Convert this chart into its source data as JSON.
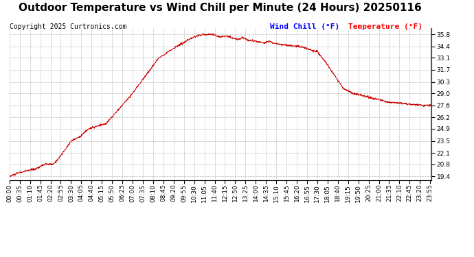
{
  "title": "Outdoor Temperature vs Wind Chill per Minute (24 Hours) 20250116",
  "copyright": "Copyright 2025 Curtronics.com",
  "legend_wind_chill": "Wind Chill (°F)",
  "legend_temperature": "Temperature (°F)",
  "legend_wind_chill_color": "#0000ff",
  "legend_temperature_color": "#ff0000",
  "line_color": "#cc0000",
  "background_color": "#ffffff",
  "grid_color": "#bbbbbb",
  "ylim": [
    19.0,
    36.5
  ],
  "yticks": [
    19.4,
    20.8,
    22.1,
    23.5,
    24.9,
    26.2,
    27.6,
    29.0,
    30.3,
    31.7,
    33.1,
    34.4,
    35.8
  ],
  "title_fontsize": 11,
  "copyright_fontsize": 7,
  "legend_fontsize": 8,
  "tick_fontsize": 6.5,
  "xtick_interval": 35
}
